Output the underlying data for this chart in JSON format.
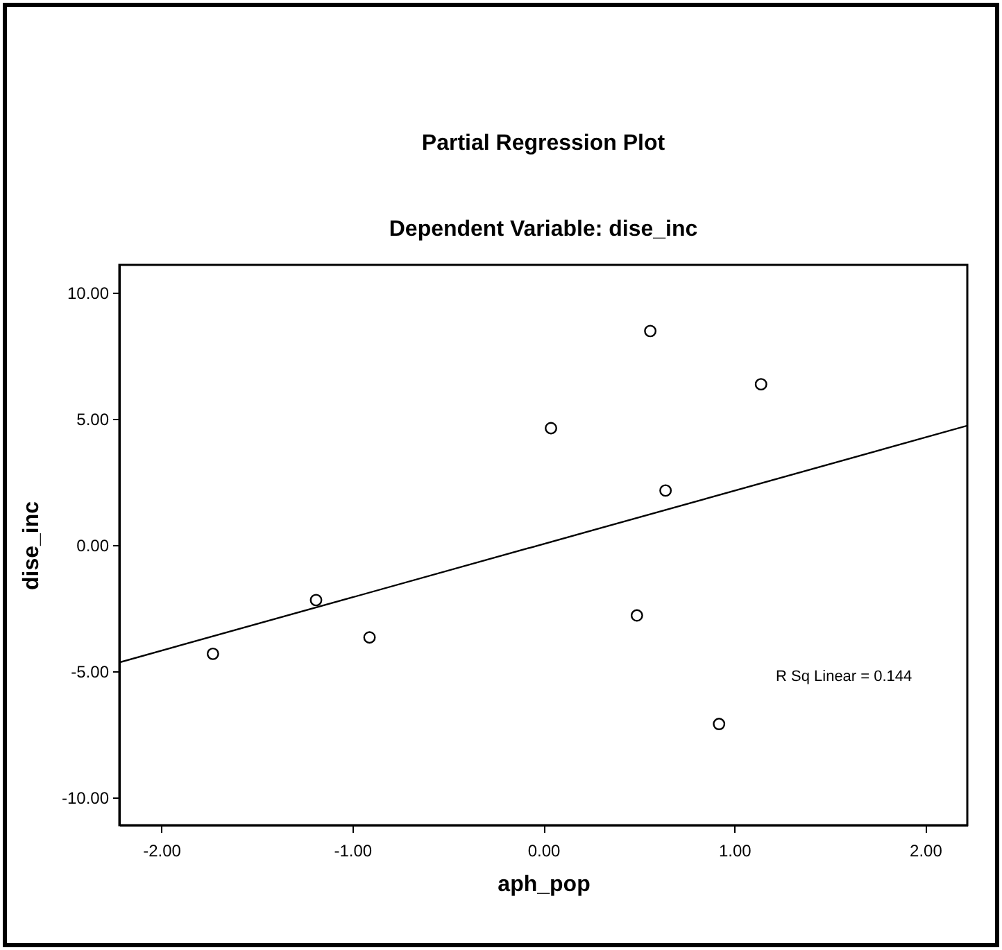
{
  "chart_data": {
    "type": "scatter",
    "title": "Partial Regression Plot",
    "subtitle": "Dependent Variable: dise_inc",
    "xlabel": "aph_pop",
    "ylabel": "dise_inc",
    "xlim": [
      -2.22,
      2.22
    ],
    "ylim": [
      -11.1,
      11.1
    ],
    "xticks": [
      {
        "value": -2,
        "label": "-2.00"
      },
      {
        "value": -1,
        "label": "-1.00"
      },
      {
        "value": 0,
        "label": "0.00"
      },
      {
        "value": 1,
        "label": "1.00"
      },
      {
        "value": 2,
        "label": "2.00"
      }
    ],
    "yticks": [
      {
        "value": -10,
        "label": "-10.00"
      },
      {
        "value": -5,
        "label": "-5.00"
      },
      {
        "value": 0,
        "label": "0.00"
      },
      {
        "value": 5,
        "label": "5.00"
      },
      {
        "value": 10,
        "label": "10.00"
      }
    ],
    "grid": false,
    "series": [
      {
        "color": "#000000",
        "marker": "circle",
        "x": [
          -1.73,
          -1.19,
          -0.91,
          0.04,
          0.56,
          1.14,
          0.64,
          0.49,
          0.92
        ],
        "values": [
          -4.31,
          -2.18,
          -3.66,
          4.63,
          8.48,
          6.37,
          2.16,
          -2.79,
          -7.09
        ]
      },
      {
        "type": "line",
        "color": "#000000",
        "x": [
          -2.22,
          2.22
        ],
        "values": [
          -4.65,
          4.73
        ]
      }
    ],
    "annotations": [
      "R Sq Linear = 0.144"
    ]
  }
}
